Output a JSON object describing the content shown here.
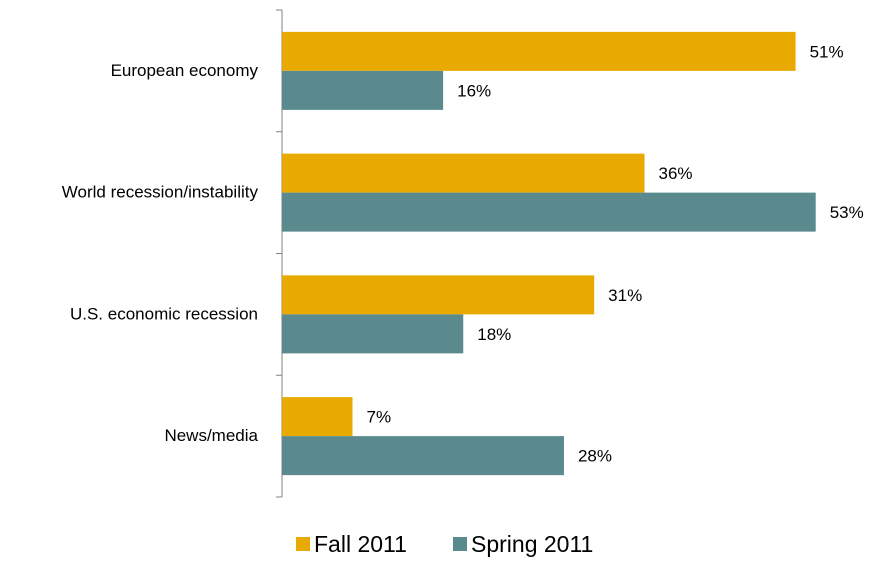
{
  "chart_data": {
    "type": "bar",
    "orientation": "horizontal",
    "categories": [
      "European economy",
      "World recession/instability",
      "U.S. economic recession",
      "News/media"
    ],
    "series": [
      {
        "name": "Fall 2011",
        "values": [
          51,
          36,
          31,
          7
        ],
        "labels": [
          "51%",
          "36%",
          "31%",
          "7%"
        ],
        "color": "#E8AA00"
      },
      {
        "name": "Spring 2011",
        "values": [
          16,
          53,
          18,
          28
        ],
        "labels": [
          "16%",
          "53%",
          "18%",
          "28%"
        ],
        "color": "#5A8A8E"
      }
    ],
    "xlim": [
      0,
      60
    ],
    "grid": false,
    "legend_position": "bottom"
  }
}
